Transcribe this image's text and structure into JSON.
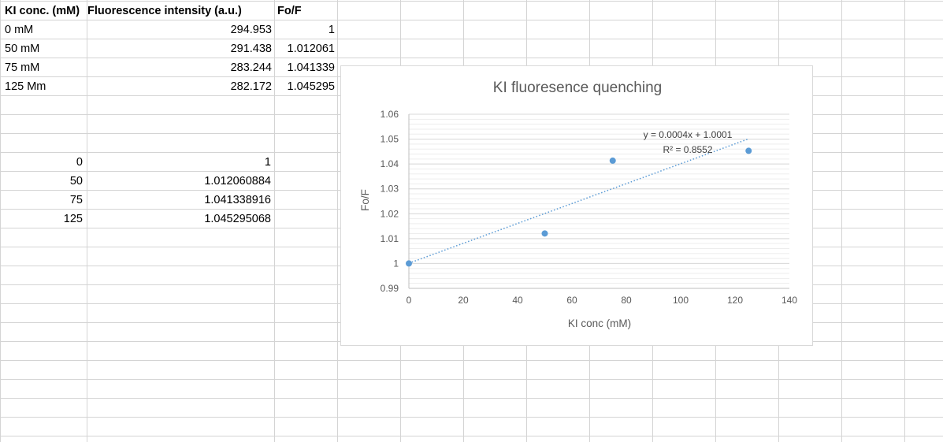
{
  "sheet": {
    "header": {
      "a": "KI conc. (mM)",
      "b": "Fluorescence intensity (a.u.)",
      "c": "Fo/F"
    },
    "rows": [
      {
        "a": "0 mM",
        "b": "294.953",
        "c": "1"
      },
      {
        "a": "50 mM",
        "b": "291.438",
        "c": "1.012061"
      },
      {
        "a": "75 mM",
        "b": "283.244",
        "c": "1.041339"
      },
      {
        "a": "125 Mm",
        "b": "282.172",
        "c": "1.045295"
      }
    ],
    "table2": [
      {
        "x": "0",
        "y": "1"
      },
      {
        "x": "50",
        "y": "1.012060884"
      },
      {
        "x": "75",
        "y": "1.041338916"
      },
      {
        "x": "125",
        "y": "1.045295068"
      }
    ]
  },
  "chart_data": {
    "type": "scatter",
    "title": "KI fluoresence quenching",
    "xlabel": "KI conc (mM)",
    "ylabel": "Fo/F",
    "xlim": [
      0,
      140
    ],
    "ylim": [
      0.99,
      1.06
    ],
    "xticks": [
      0,
      20,
      40,
      60,
      80,
      100,
      120,
      140
    ],
    "yticks": [
      0.99,
      1,
      1.01,
      1.02,
      1.03,
      1.04,
      1.05,
      1.06
    ],
    "xtick_labels": [
      "0",
      "20",
      "40",
      "60",
      "80",
      "100",
      "120",
      "140"
    ],
    "ytick_labels": [
      "0.99",
      "1",
      "1.01",
      "1.02",
      "1.03",
      "1.04",
      "1.05",
      "1.06"
    ],
    "series": [
      {
        "x": [
          0,
          50,
          75,
          125
        ],
        "y": [
          1,
          1.012061,
          1.041339,
          1.045295
        ]
      }
    ],
    "trendline": {
      "slope": 0.0004,
      "intercept": 1.0001,
      "x_range": [
        0,
        125
      ]
    },
    "equation": "y = 0.0004x + 1.0001",
    "r_squared": "R² = 0.8552",
    "grid": true,
    "colors": {
      "marker": "#5b9bd5",
      "trendline": "#5b9bd5",
      "gridline": "#d9d9d9",
      "cellborder": "#d4d4d4"
    }
  }
}
